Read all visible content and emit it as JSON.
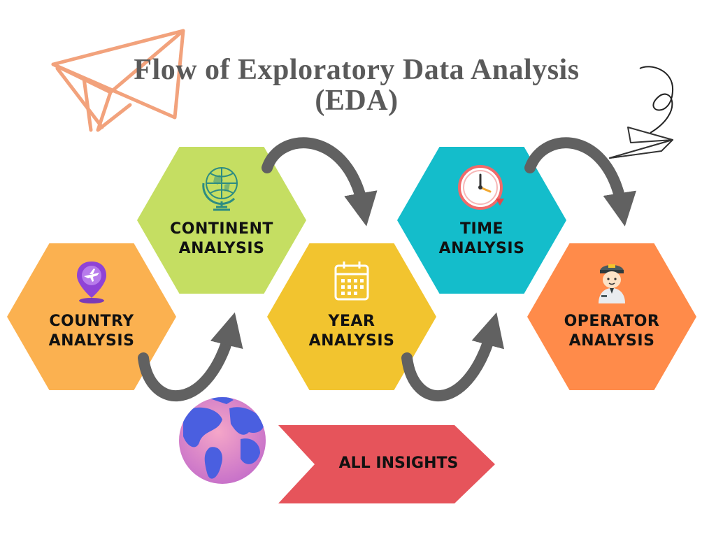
{
  "title": {
    "line1": "Flow of Exploratory Data Analysis",
    "line2": "(EDA)"
  },
  "steps": [
    {
      "line1": "COUNTRY",
      "line2": "ANALYSIS",
      "color": "#FBB150",
      "icon": "location-pin-plane-icon"
    },
    {
      "line1": "CONTINENT",
      "line2": "ANALYSIS",
      "color": "#C5DE62",
      "icon": "globe-icon"
    },
    {
      "line1": "YEAR",
      "line2": "ANALYSIS",
      "color": "#F2C42F",
      "icon": "calendar-icon"
    },
    {
      "line1": "TIME",
      "line2": "ANALYSIS",
      "color": "#14BDCB",
      "icon": "clock-icon"
    },
    {
      "line1": "OPERATOR",
      "line2": "ANALYSIS",
      "color": "#FF8B4A",
      "icon": "pilot-icon"
    }
  ],
  "insights": {
    "label": "ALL INSIGHTS",
    "color": "#E6545B"
  },
  "colors": {
    "arrow": "#616161",
    "title": "#5a5a5a",
    "paper_plane": "#F2A27C"
  }
}
